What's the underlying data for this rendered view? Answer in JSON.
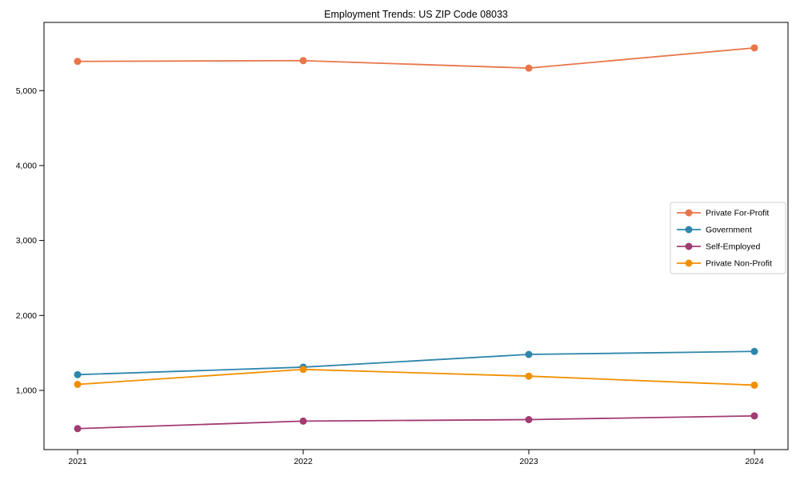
{
  "chart_data": {
    "type": "line",
    "title": "Employment Trends: US ZIP Code 08033",
    "categories": [
      "2021",
      "2022",
      "2023",
      "2024"
    ],
    "series": [
      {
        "name": "Private For-Profit",
        "color": "#E8764B",
        "values": [
          5390,
          5400,
          5300,
          5570
        ]
      },
      {
        "name": "Government",
        "color": "#2E86AB",
        "values": [
          1210,
          1310,
          1480,
          1520
        ]
      },
      {
        "name": "Self-Employed",
        "color": "#A23B72",
        "values": [
          490,
          590,
          610,
          660
        ]
      },
      {
        "name": "Private Non-Profit",
        "color": "#F18F01",
        "values": [
          1080,
          1280,
          1190,
          1070
        ]
      }
    ],
    "xlabel": "",
    "ylabel": "",
    "ylim": [
      210,
      5910
    ],
    "yticks": [
      1000,
      2000,
      3000,
      4000,
      5000
    ],
    "ytick_labels": [
      "1,000",
      "2,000",
      "3,000",
      "4,000",
      "5,000"
    ],
    "grid": false,
    "legend_position": "center-right",
    "background_color": "#ffffff",
    "spine_color": "#000000",
    "marker": "circle",
    "marker_radius": 4.5,
    "line_width": 1.8
  }
}
